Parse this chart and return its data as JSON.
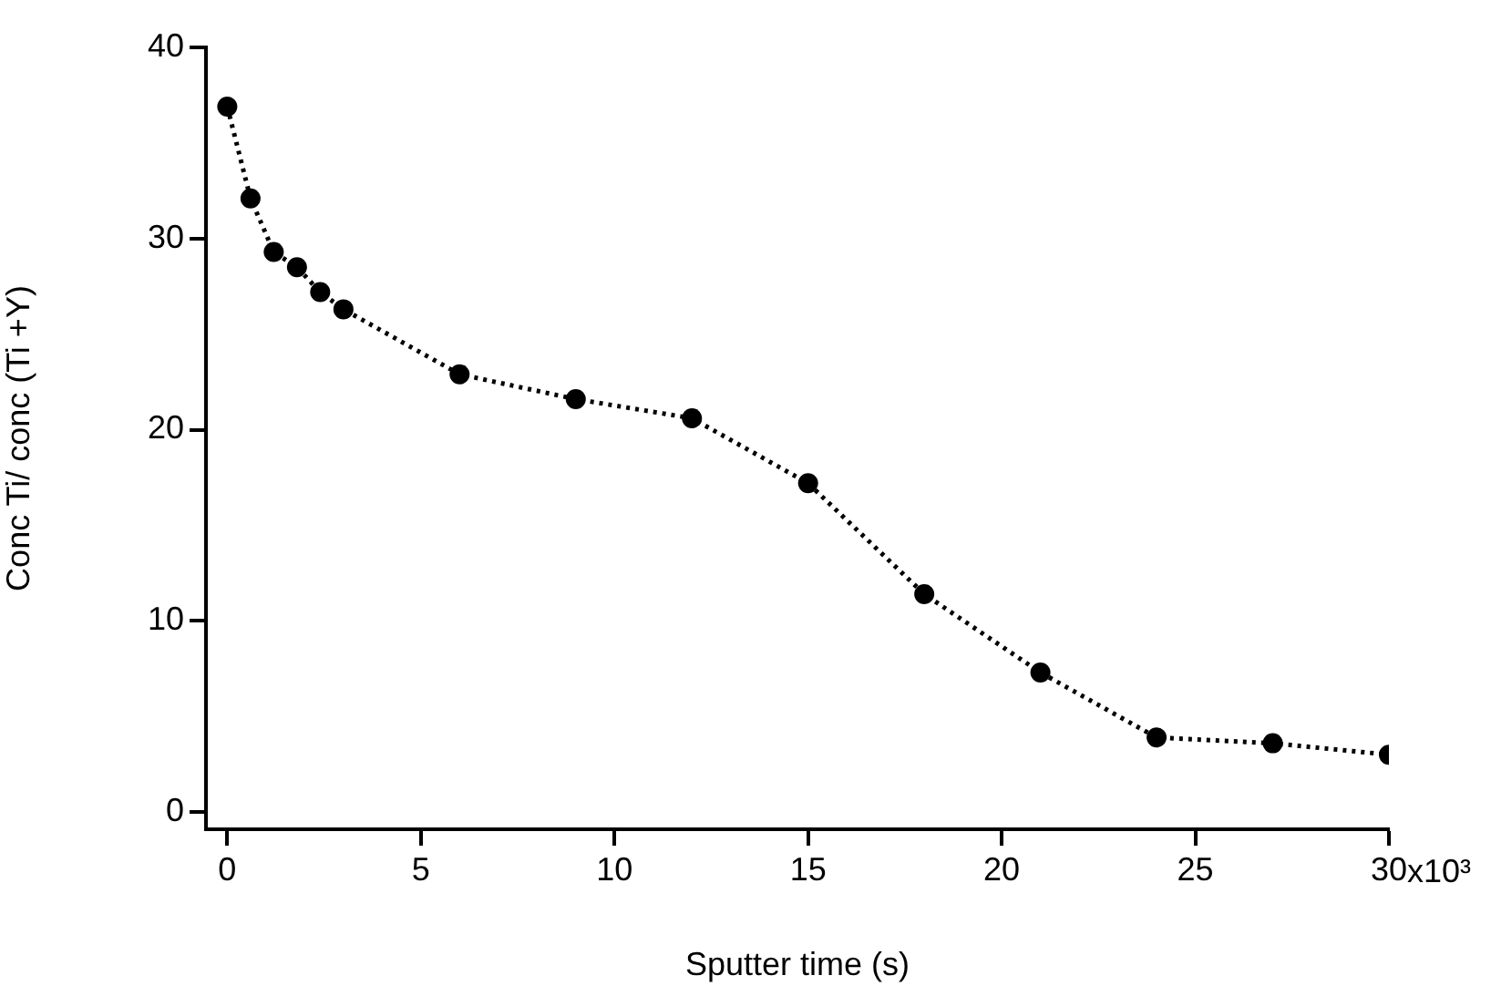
{
  "chart_data": {
    "type": "line",
    "xlabel": "Sputter time (s)",
    "ylabel": "Conc Ti/ conc (Ti +Y)",
    "x": [
      0,
      0.6,
      1.2,
      1.8,
      2.4,
      3,
      6,
      9,
      12,
      15,
      18,
      21,
      24,
      27,
      30
    ],
    "series": [
      {
        "color": "#000000",
        "values": [
          36.9,
          32.1,
          29.3,
          28.5,
          27.2,
          26.3,
          22.9,
          21.6,
          20.6,
          17.2,
          11.4,
          7.3,
          3.9,
          3.6,
          3.0
        ]
      }
    ],
    "xlim": [
      -0.55,
      30
    ],
    "xticks": [
      0,
      5,
      10,
      15,
      20,
      25,
      30
    ],
    "annotations": [
      "x10³"
    ],
    "ylim": [
      -0.9,
      40
    ],
    "yticks": [
      0,
      10,
      20,
      30,
      40
    ],
    "grid": false,
    "legend": false,
    "marker": "circle",
    "line_style": "dotted"
  }
}
